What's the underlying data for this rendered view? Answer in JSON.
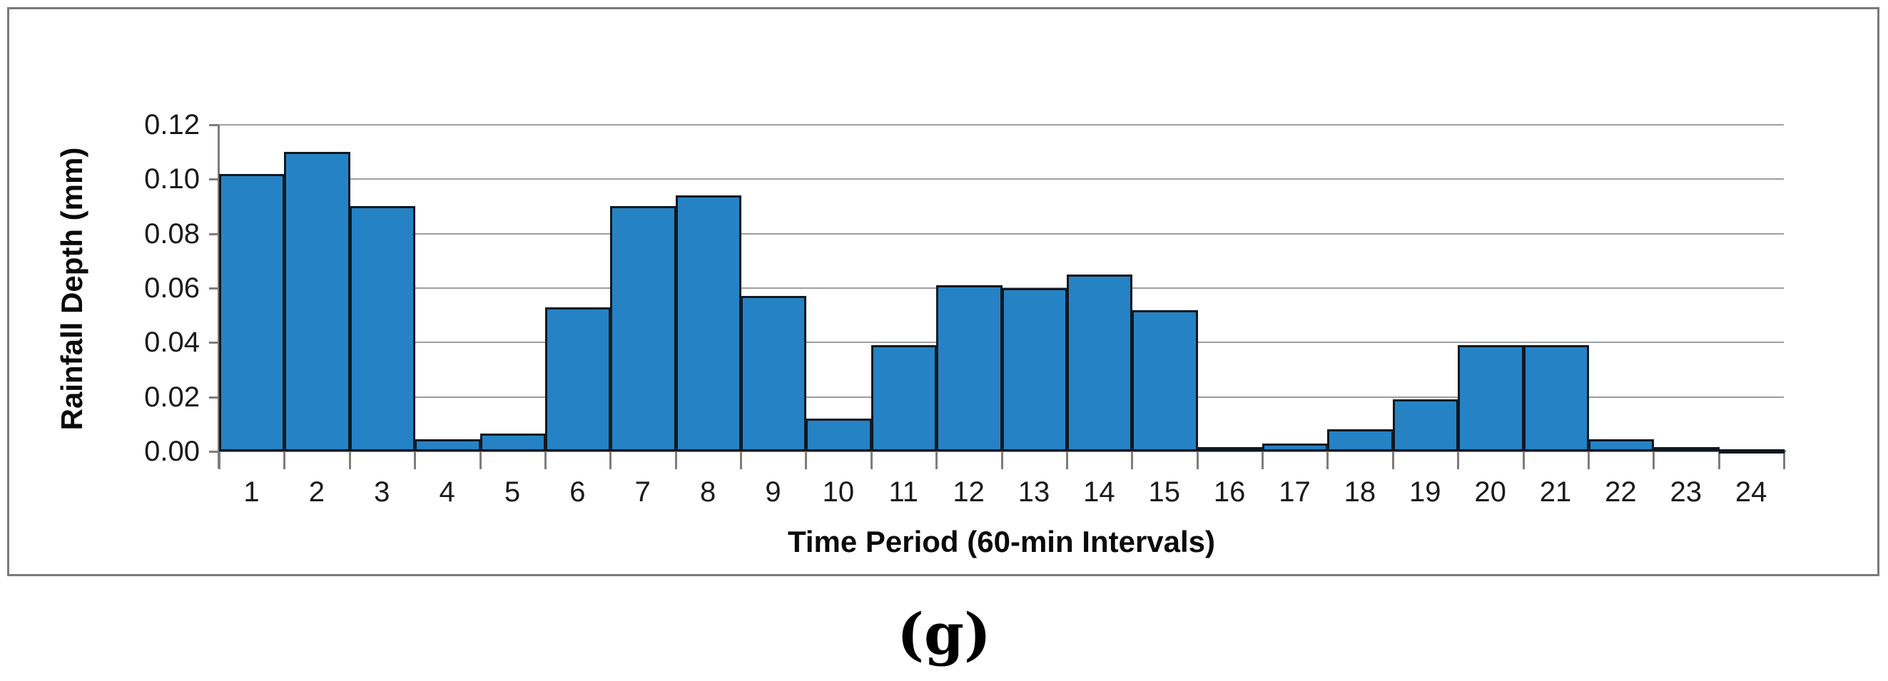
{
  "figure": {
    "caption": "(g)"
  },
  "chart_data": {
    "type": "bar",
    "title": "",
    "xlabel": "Time Period (60-min Intervals)",
    "ylabel": "Rainfall Depth (mm)",
    "categories": [
      "1",
      "2",
      "3",
      "4",
      "5",
      "6",
      "7",
      "8",
      "9",
      "10",
      "11",
      "12",
      "13",
      "14",
      "15",
      "16",
      "17",
      "18",
      "19",
      "20",
      "21",
      "22",
      "23",
      "24"
    ],
    "values": [
      0.102,
      0.11,
      0.09,
      0.0045,
      0.0065,
      0.053,
      0.09,
      0.094,
      0.057,
      0.012,
      0.039,
      0.061,
      0.06,
      0.065,
      0.052,
      0.0015,
      0.003,
      0.008,
      0.019,
      0.039,
      0.039,
      0.0045,
      0.0015,
      0.0008
    ],
    "ylim": [
      0,
      0.12
    ],
    "yticks": [
      0,
      0.02,
      0.04,
      0.06,
      0.08,
      0.1,
      0.12
    ],
    "ytick_labels": [
      "0.00",
      "0.02",
      "0.04",
      "0.06",
      "0.08",
      "0.10",
      "0.12"
    ],
    "grid": true,
    "legend_position": "none",
    "bar_color": "#2583C5",
    "bar_border_color": "#101820",
    "gridline_color": "#9E9E9E",
    "axis_color": "#7D7D7D",
    "text_color": "#1A1A1A",
    "frame_border_color": "#7A7A7A"
  }
}
